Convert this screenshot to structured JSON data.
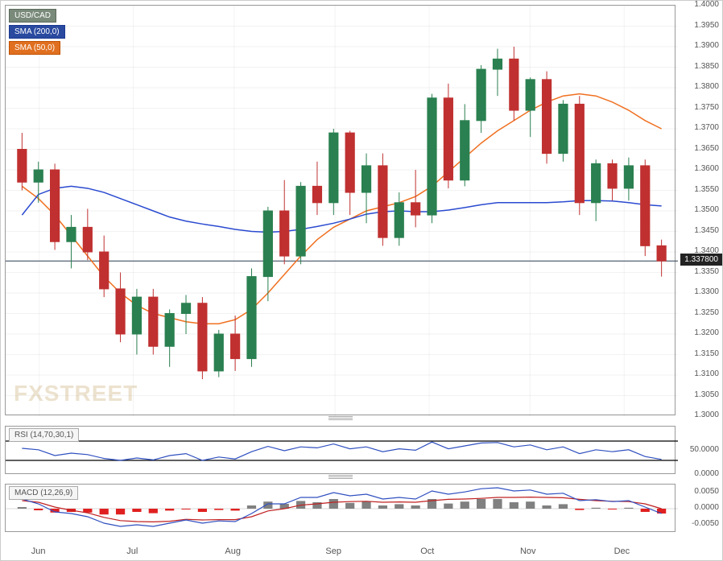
{
  "pair_label": "USD/CAD",
  "sma200_label": "SMA (200,0)",
  "sma50_label": "SMA (50,0)",
  "rsi_label": "RSI (14,70,30,1)",
  "macd_label": "MACD (12,26,9)",
  "watermark": "FXSTREET",
  "current_price": "1.337800",
  "colors": {
    "pair_box_bg": "#7a8a7a",
    "pair_box_border": "#5a6a5a",
    "sma200_box_bg": "#2a4aa0",
    "sma200_box_border": "#1a3a90",
    "sma50_box_bg": "#e07020",
    "sma50_box_border": "#c05000",
    "sma200_line": "#2a4ad0",
    "sma50_line": "#f07020",
    "rsi_line": "#3050c0",
    "macd_line": "#3050c0",
    "macd_signal": "#c02020",
    "hist_pos": "#808080",
    "hist_neg": "#e02020",
    "up_candle": "#2a8050",
    "down_candle": "#c03030",
    "current_line": "#2a3a50",
    "rsi_band": "#000",
    "panel_border": "#999"
  },
  "main_chart": {
    "ymin": 1.3,
    "ymax": 1.4,
    "ytick_step": 0.005,
    "y_labels": [
      "1.4000",
      "1.3950",
      "1.3900",
      "1.3850",
      "1.3800",
      "1.3750",
      "1.3700",
      "1.3650",
      "1.3600",
      "1.3550",
      "1.3500",
      "1.3450",
      "1.3400",
      "1.3350",
      "1.3300",
      "1.3250",
      "1.3200",
      "1.3150",
      "1.3100",
      "1.3050",
      "1.3000"
    ],
    "x_labels": [
      "Jun",
      "Jul",
      "Aug",
      "Sep",
      "Oct",
      "Nov",
      "Dec"
    ],
    "x_positions_pct": [
      5,
      19,
      34,
      49,
      63,
      78,
      92
    ],
    "current_price_value": 1.3378,
    "sma200": [
      1.349,
      1.354,
      1.3555,
      1.356,
      1.3555,
      1.3545,
      1.353,
      1.3515,
      1.35,
      1.3485,
      1.3475,
      1.3468,
      1.3462,
      1.3455,
      1.345,
      1.3448,
      1.345,
      1.3455,
      1.3462,
      1.347,
      1.348,
      1.3492,
      1.3498,
      1.35,
      1.3498,
      1.3498,
      1.3502,
      1.3508,
      1.3515,
      1.352,
      1.352,
      1.352,
      1.352,
      1.3522,
      1.3525,
      1.3525,
      1.3524,
      1.352,
      1.3515,
      1.3512
    ],
    "sma50": [
      1.356,
      1.353,
      1.349,
      1.344,
      1.339,
      1.334,
      1.33,
      1.327,
      1.325,
      1.324,
      1.323,
      1.3225,
      1.3225,
      1.3235,
      1.326,
      1.33,
      1.3345,
      1.339,
      1.343,
      1.346,
      1.348,
      1.35,
      1.351,
      1.352,
      1.3535,
      1.356,
      1.3595,
      1.363,
      1.3665,
      1.3695,
      1.372,
      1.3745,
      1.3765,
      1.378,
      1.3785,
      1.378,
      1.3765,
      1.3745,
      1.372,
      1.37
    ],
    "candles": [
      {
        "o": 1.365,
        "h": 1.369,
        "l": 1.355,
        "c": 1.357
      },
      {
        "o": 1.357,
        "h": 1.362,
        "l": 1.352,
        "c": 1.36
      },
      {
        "o": 1.36,
        "h": 1.3615,
        "l": 1.3405,
        "c": 1.3425
      },
      {
        "o": 1.3425,
        "h": 1.349,
        "l": 1.336,
        "c": 1.346
      },
      {
        "o": 1.346,
        "h": 1.3505,
        "l": 1.338,
        "c": 1.34
      },
      {
        "o": 1.34,
        "h": 1.344,
        "l": 1.329,
        "c": 1.331
      },
      {
        "o": 1.331,
        "h": 1.335,
        "l": 1.318,
        "c": 1.32
      },
      {
        "o": 1.32,
        "h": 1.331,
        "l": 1.315,
        "c": 1.329
      },
      {
        "o": 1.329,
        "h": 1.331,
        "l": 1.315,
        "c": 1.317
      },
      {
        "o": 1.317,
        "h": 1.326,
        "l": 1.312,
        "c": 1.325
      },
      {
        "o": 1.325,
        "h": 1.3295,
        "l": 1.32,
        "c": 1.3275
      },
      {
        "o": 1.3275,
        "h": 1.329,
        "l": 1.309,
        "c": 1.311
      },
      {
        "o": 1.311,
        "h": 1.321,
        "l": 1.3095,
        "c": 1.32
      },
      {
        "o": 1.32,
        "h": 1.3245,
        "l": 1.311,
        "c": 1.314
      },
      {
        "o": 1.314,
        "h": 1.336,
        "l": 1.312,
        "c": 1.334
      },
      {
        "o": 1.334,
        "h": 1.351,
        "l": 1.328,
        "c": 1.35
      },
      {
        "o": 1.35,
        "h": 1.3575,
        "l": 1.337,
        "c": 1.339
      },
      {
        "o": 1.339,
        "h": 1.357,
        "l": 1.337,
        "c": 1.356
      },
      {
        "o": 1.356,
        "h": 1.362,
        "l": 1.349,
        "c": 1.352
      },
      {
        "o": 1.352,
        "h": 1.37,
        "l": 1.349,
        "c": 1.369
      },
      {
        "o": 1.369,
        "h": 1.3695,
        "l": 1.349,
        "c": 1.3545
      },
      {
        "o": 1.3545,
        "h": 1.364,
        "l": 1.347,
        "c": 1.361
      },
      {
        "o": 1.361,
        "h": 1.364,
        "l": 1.3415,
        "c": 1.3435
      },
      {
        "o": 1.3435,
        "h": 1.3545,
        "l": 1.3415,
        "c": 1.352
      },
      {
        "o": 1.352,
        "h": 1.36,
        "l": 1.346,
        "c": 1.349
      },
      {
        "o": 1.349,
        "h": 1.3785,
        "l": 1.347,
        "c": 1.3775
      },
      {
        "o": 1.3775,
        "h": 1.381,
        "l": 1.3555,
        "c": 1.3575
      },
      {
        "o": 1.3575,
        "h": 1.376,
        "l": 1.356,
        "c": 1.372
      },
      {
        "o": 1.372,
        "h": 1.3855,
        "l": 1.369,
        "c": 1.3845
      },
      {
        "o": 1.3845,
        "h": 1.3895,
        "l": 1.378,
        "c": 1.387
      },
      {
        "o": 1.387,
        "h": 1.39,
        "l": 1.372,
        "c": 1.3745
      },
      {
        "o": 1.3745,
        "h": 1.3825,
        "l": 1.368,
        "c": 1.382
      },
      {
        "o": 1.382,
        "h": 1.384,
        "l": 1.3615,
        "c": 1.364
      },
      {
        "o": 1.364,
        "h": 1.377,
        "l": 1.362,
        "c": 1.376
      },
      {
        "o": 1.376,
        "h": 1.378,
        "l": 1.349,
        "c": 1.352
      },
      {
        "o": 1.352,
        "h": 1.3625,
        "l": 1.3475,
        "c": 1.3615
      },
      {
        "o": 1.3615,
        "h": 1.3625,
        "l": 1.3525,
        "c": 1.3555
      },
      {
        "o": 1.3555,
        "h": 1.363,
        "l": 1.3525,
        "c": 1.361
      },
      {
        "o": 1.361,
        "h": 1.3625,
        "l": 1.339,
        "c": 1.3415
      },
      {
        "o": 1.3415,
        "h": 1.343,
        "l": 1.334,
        "c": 1.3378
      }
    ]
  },
  "rsi_chart": {
    "ymin": 0,
    "ymax": 100,
    "y_labels": [
      "50.0000",
      "0.0000"
    ],
    "y_label_vals": [
      50,
      0
    ],
    "upper_band": 70,
    "lower_band": 30,
    "values": [
      55,
      52,
      40,
      45,
      42,
      34,
      30,
      35,
      31,
      40,
      44,
      30,
      37,
      33,
      48,
      59,
      50,
      58,
      56,
      64,
      54,
      58,
      48,
      54,
      51,
      68,
      54,
      60,
      66,
      67,
      58,
      62,
      52,
      58,
      44,
      52,
      48,
      52,
      38,
      32
    ]
  },
  "macd_chart": {
    "ymin": -0.0075,
    "ymax": 0.0075,
    "y_labels": [
      "0.0050",
      "0.0000",
      "-0.0050"
    ],
    "y_label_vals": [
      0.005,
      0,
      -0.005
    ],
    "hist": [
      0.0005,
      -0.0005,
      -0.0012,
      -0.001,
      -0.0012,
      -0.0018,
      -0.0018,
      -0.001,
      -0.0014,
      -0.0006,
      -0.0002,
      -0.001,
      -0.0004,
      -0.0006,
      0.001,
      0.0022,
      0.0015,
      0.0024,
      0.002,
      0.003,
      0.0018,
      0.0022,
      0.001,
      0.0014,
      0.001,
      0.003,
      0.0016,
      0.0022,
      0.003,
      0.003,
      0.002,
      0.0022,
      0.001,
      0.0014,
      -0.0004,
      0.0003,
      -0.0001,
      0.0003,
      -0.001,
      -0.0015
    ],
    "macd": [
      0.003,
      0.0015,
      -0.001,
      -0.0015,
      -0.0025,
      -0.0045,
      -0.0055,
      -0.005,
      -0.0055,
      -0.0045,
      -0.0035,
      -0.0045,
      -0.0038,
      -0.004,
      -0.0015,
      0.0015,
      0.0015,
      0.0035,
      0.0035,
      0.005,
      0.004,
      0.0045,
      0.003,
      0.0035,
      0.003,
      0.0055,
      0.0045,
      0.0052,
      0.0062,
      0.0065,
      0.0055,
      0.0058,
      0.0045,
      0.0048,
      0.0025,
      0.0028,
      0.0022,
      0.0025,
      0.0005,
      -0.0015
    ],
    "signal": [
      0.0025,
      0.002,
      0.0005,
      -0.0005,
      -0.0013,
      -0.0027,
      -0.0037,
      -0.004,
      -0.0041,
      -0.0039,
      -0.0033,
      -0.0035,
      -0.0034,
      -0.0034,
      -0.0025,
      -0.0007,
      0.0,
      0.0011,
      0.0015,
      0.002,
      0.0022,
      0.0023,
      0.002,
      0.0021,
      0.002,
      0.0025,
      0.0029,
      0.003,
      0.0032,
      0.0035,
      0.0035,
      0.0036,
      0.0035,
      0.0034,
      0.0029,
      0.0025,
      0.0023,
      0.0022,
      0.0015,
      0.0
    ]
  }
}
